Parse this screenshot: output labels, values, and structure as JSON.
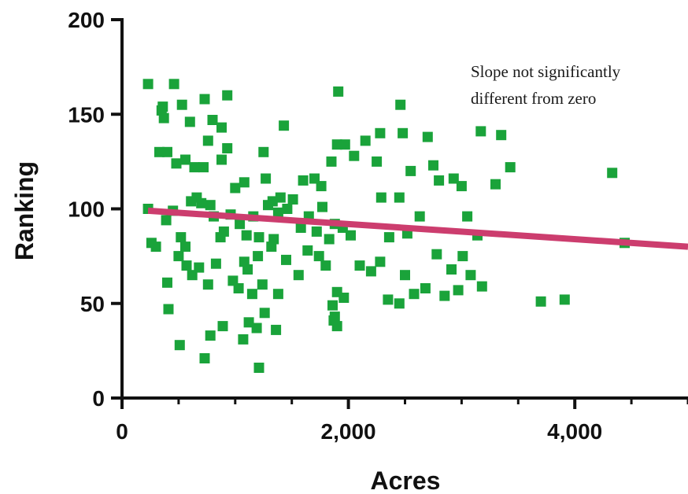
{
  "chart_data": {
    "type": "scatter",
    "xlabel": "Acres",
    "ylabel": "Ranking",
    "xlim": [
      0,
      5000
    ],
    "ylim": [
      0,
      200
    ],
    "x_ticks": [
      0,
      2000,
      4000
    ],
    "x_tick_labels": [
      "0",
      "2,000",
      "4,000"
    ],
    "y_ticks": [
      0,
      50,
      100,
      150,
      200
    ],
    "y_tick_labels": [
      "0",
      "50",
      "100",
      "150",
      "200"
    ],
    "grid": false,
    "annotation": [
      "Slope not significantly",
      "different from zero"
    ],
    "colors": {
      "points": "#1aa33a",
      "trend_line": "#cc3d6e",
      "axis": "#111111"
    },
    "trend_line": {
      "x": [
        230,
        5000
      ],
      "y": [
        99,
        80
      ]
    },
    "points": [
      [
        230,
        166
      ],
      [
        460,
        166
      ],
      [
        350,
        152
      ],
      [
        370,
        148
      ],
      [
        360,
        154
      ],
      [
        530,
        155
      ],
      [
        730,
        158
      ],
      [
        930,
        160
      ],
      [
        600,
        146
      ],
      [
        800,
        147
      ],
      [
        880,
        143
      ],
      [
        1430,
        144
      ],
      [
        1910,
        162
      ],
      [
        2460,
        155
      ],
      [
        330,
        130
      ],
      [
        400,
        130
      ],
      [
        480,
        124
      ],
      [
        560,
        126
      ],
      [
        640,
        122
      ],
      [
        720,
        122
      ],
      [
        760,
        136
      ],
      [
        880,
        126
      ],
      [
        930,
        132
      ],
      [
        1250,
        130
      ],
      [
        1270,
        116
      ],
      [
        1080,
        114
      ],
      [
        1330,
        104
      ],
      [
        1400,
        106
      ],
      [
        1600,
        115
      ],
      [
        1700,
        116
      ],
      [
        1760,
        112
      ],
      [
        1850,
        125
      ],
      [
        1900,
        134
      ],
      [
        1970,
        134
      ],
      [
        2050,
        128
      ],
      [
        2150,
        136
      ],
      [
        2280,
        140
      ],
      [
        2250,
        125
      ],
      [
        2290,
        106
      ],
      [
        2450,
        106
      ],
      [
        2480,
        140
      ],
      [
        2550,
        120
      ],
      [
        2700,
        138
      ],
      [
        2750,
        123
      ],
      [
        2800,
        115
      ],
      [
        2930,
        116
      ],
      [
        3000,
        112
      ],
      [
        3170,
        141
      ],
      [
        3350,
        139
      ],
      [
        3300,
        113
      ],
      [
        3430,
        122
      ],
      [
        4330,
        119
      ],
      [
        230,
        100
      ],
      [
        260,
        82
      ],
      [
        300,
        80
      ],
      [
        390,
        94
      ],
      [
        450,
        99
      ],
      [
        520,
        85
      ],
      [
        560,
        80
      ],
      [
        610,
        104
      ],
      [
        660,
        106
      ],
      [
        700,
        103
      ],
      [
        780,
        102
      ],
      [
        810,
        96
      ],
      [
        870,
        85
      ],
      [
        900,
        88
      ],
      [
        960,
        97
      ],
      [
        1000,
        111
      ],
      [
        1040,
        92
      ],
      [
        1100,
        86
      ],
      [
        1160,
        96
      ],
      [
        1210,
        85
      ],
      [
        1290,
        102
      ],
      [
        1340,
        84
      ],
      [
        1380,
        98
      ],
      [
        1460,
        100
      ],
      [
        1510,
        105
      ],
      [
        1580,
        90
      ],
      [
        1650,
        96
      ],
      [
        1720,
        88
      ],
      [
        1770,
        101
      ],
      [
        1830,
        84
      ],
      [
        1880,
        92
      ],
      [
        1950,
        90
      ],
      [
        2020,
        86
      ],
      [
        2360,
        85
      ],
      [
        2520,
        87
      ],
      [
        2630,
        96
      ],
      [
        3050,
        96
      ],
      [
        3140,
        86
      ],
      [
        4440,
        82
      ],
      [
        500,
        75
      ],
      [
        570,
        70
      ],
      [
        620,
        65
      ],
      [
        680,
        69
      ],
      [
        760,
        60
      ],
      [
        830,
        71
      ],
      [
        980,
        62
      ],
      [
        1030,
        58
      ],
      [
        1080,
        72
      ],
      [
        1110,
        68
      ],
      [
        1150,
        55
      ],
      [
        1200,
        75
      ],
      [
        1240,
        60
      ],
      [
        1320,
        80
      ],
      [
        1380,
        55
      ],
      [
        1450,
        73
      ],
      [
        1560,
        65
      ],
      [
        1640,
        78
      ],
      [
        1740,
        75
      ],
      [
        1800,
        70
      ],
      [
        1900,
        56
      ],
      [
        1960,
        53
      ],
      [
        2100,
        70
      ],
      [
        2200,
        67
      ],
      [
        2280,
        72
      ],
      [
        2350,
        52
      ],
      [
        2450,
        50
      ],
      [
        2500,
        65
      ],
      [
        2580,
        55
      ],
      [
        2680,
        58
      ],
      [
        2780,
        76
      ],
      [
        2850,
        54
      ],
      [
        2910,
        68
      ],
      [
        2970,
        57
      ],
      [
        3010,
        75
      ],
      [
        3080,
        65
      ],
      [
        3180,
        59
      ],
      [
        3700,
        51
      ],
      [
        3910,
        52
      ],
      [
        400,
        61
      ],
      [
        410,
        47
      ],
      [
        510,
        28
      ],
      [
        730,
        21
      ],
      [
        780,
        33
      ],
      [
        890,
        38
      ],
      [
        1070,
        31
      ],
      [
        1120,
        40
      ],
      [
        1190,
        37
      ],
      [
        1210,
        16
      ],
      [
        1260,
        45
      ],
      [
        1360,
        36
      ],
      [
        1870,
        41
      ],
      [
        1880,
        43
      ],
      [
        1900,
        38
      ],
      [
        1860,
        49
      ]
    ]
  }
}
